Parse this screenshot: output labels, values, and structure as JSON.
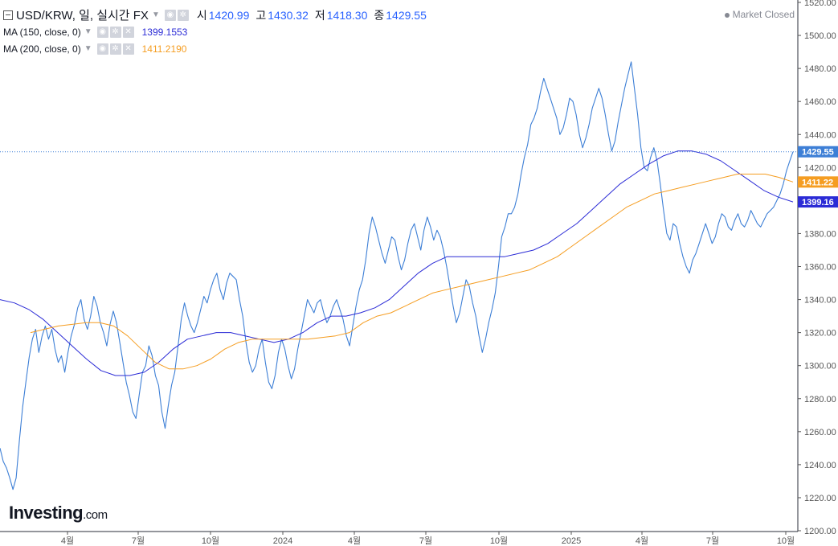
{
  "header": {
    "symbol": "USD/KRW, 일, 실시간 FX",
    "open_label": "시",
    "open": "1420.99",
    "high_label": "고",
    "high": "1430.32",
    "low_label": "저",
    "low": "1418.30",
    "close_label": "종",
    "close": "1429.55",
    "status": "Market Closed"
  },
  "indicators": [
    {
      "name": "MA (150, close, 0)",
      "value": "1399.1553",
      "color": "#2b2bd6"
    },
    {
      "name": "MA (200, close, 0)",
      "value": "1411.2190",
      "color": "#f59d21"
    }
  ],
  "logo": {
    "name": "Investing",
    "suffix": ".com"
  },
  "colors": {
    "price_line": "#3d7fd6",
    "ma150": "#2b2bd6",
    "ma200": "#f59d21",
    "last_price_tag": "#3d7fd6",
    "axis_text": "#555555"
  },
  "chart_data": {
    "type": "line",
    "y_axis": {
      "ticks": [
        1200,
        1220,
        1240,
        1260,
        1280,
        1300,
        1320,
        1340,
        1360,
        1380,
        1400,
        1420,
        1440,
        1460,
        1480,
        1500,
        1520
      ],
      "range": [
        1200,
        1520
      ]
    },
    "x_axis": {
      "ticks": [
        "4월",
        "7월",
        "10월",
        "2024",
        "4월",
        "7월",
        "10월",
        "2025",
        "4월",
        "7월",
        "10월"
      ]
    },
    "last_price": 1429.55,
    "last_price_label": "1429.55",
    "ma150_label": "1399.16",
    "ma200_label": "1411.22",
    "series": [
      {
        "name": "USD/KRW",
        "key": "price",
        "values": [
          1250,
          1242,
          1238,
          1232,
          1225,
          1232,
          1255,
          1275,
          1290,
          1305,
          1316,
          1322,
          1308,
          1318,
          1324,
          1316,
          1322,
          1310,
          1302,
          1306,
          1296,
          1308,
          1318,
          1325,
          1335,
          1340,
          1328,
          1322,
          1330,
          1342,
          1336,
          1326,
          1320,
          1312,
          1325,
          1333,
          1326,
          1314,
          1302,
          1290,
          1282,
          1272,
          1268,
          1282,
          1296,
          1300,
          1312,
          1306,
          1294,
          1288,
          1272,
          1262,
          1276,
          1288,
          1296,
          1312,
          1328,
          1338,
          1330,
          1324,
          1320,
          1326,
          1334,
          1342,
          1338,
          1346,
          1352,
          1356,
          1346,
          1340,
          1350,
          1356,
          1354,
          1352,
          1340,
          1330,
          1314,
          1302,
          1296,
          1300,
          1310,
          1316,
          1302,
          1290,
          1286,
          1294,
          1308,
          1316,
          1310,
          1300,
          1292,
          1298,
          1310,
          1320,
          1330,
          1340,
          1336,
          1332,
          1338,
          1340,
          1332,
          1326,
          1330,
          1336,
          1340,
          1334,
          1328,
          1318,
          1312,
          1324,
          1336,
          1346,
          1352,
          1364,
          1380,
          1390,
          1384,
          1376,
          1368,
          1362,
          1370,
          1378,
          1376,
          1366,
          1358,
          1364,
          1374,
          1382,
          1386,
          1378,
          1370,
          1382,
          1390,
          1384,
          1376,
          1382,
          1378,
          1370,
          1360,
          1348,
          1336,
          1326,
          1332,
          1342,
          1352,
          1348,
          1338,
          1330,
          1318,
          1308,
          1316,
          1326,
          1334,
          1344,
          1360,
          1378,
          1384,
          1392,
          1392,
          1396,
          1404,
          1416,
          1426,
          1434,
          1446,
          1450,
          1456,
          1466,
          1474,
          1468,
          1462,
          1456,
          1450,
          1440,
          1444,
          1452,
          1462,
          1460,
          1452,
          1440,
          1432,
          1438,
          1446,
          1456,
          1462,
          1468,
          1462,
          1452,
          1440,
          1430,
          1436,
          1448,
          1458,
          1468,
          1476,
          1484,
          1468,
          1452,
          1432,
          1420,
          1418,
          1426,
          1432,
          1424,
          1410,
          1394,
          1380,
          1376,
          1386,
          1384,
          1374,
          1366,
          1360,
          1356,
          1364,
          1368,
          1374,
          1380,
          1386,
          1380,
          1374,
          1378,
          1386,
          1392,
          1390,
          1384,
          1382,
          1388,
          1392,
          1386,
          1384,
          1388,
          1394,
          1390,
          1386,
          1384,
          1388,
          1392,
          1394,
          1396,
          1400,
          1404,
          1410,
          1418,
          1424,
          1429.55
        ]
      },
      {
        "name": "MA (150, close, 0)",
        "key": "ma150",
        "values": [
          1340,
          1338,
          1334,
          1328,
          1320,
          1312,
          1304,
          1297,
          1294,
          1294,
          1296,
          1302,
          1310,
          1316,
          1318,
          1320,
          1320,
          1318,
          1316,
          1314,
          1316,
          1320,
          1326,
          1330,
          1330,
          1332,
          1335,
          1340,
          1348,
          1356,
          1362,
          1366,
          1366,
          1366,
          1366,
          1366,
          1368,
          1370,
          1374,
          1380,
          1386,
          1394,
          1402,
          1410,
          1416,
          1422,
          1427,
          1430,
          1430,
          1428,
          1424,
          1418,
          1412,
          1406,
          1402,
          1399.16
        ]
      },
      {
        "name": "MA (200, close, 0)",
        "key": "ma200",
        "values": [
          1320,
          1322,
          1324,
          1325,
          1326,
          1326,
          1324,
          1318,
          1310,
          1302,
          1298,
          1298,
          1300,
          1304,
          1310,
          1314,
          1316,
          1316,
          1316,
          1316,
          1316,
          1317,
          1318,
          1320,
          1326,
          1330,
          1332,
          1336,
          1340,
          1344,
          1346,
          1348,
          1350,
          1352,
          1354,
          1356,
          1358,
          1362,
          1366,
          1372,
          1378,
          1384,
          1390,
          1396,
          1400,
          1404,
          1406,
          1408,
          1410,
          1412,
          1414,
          1416,
          1416,
          1416,
          1414,
          1411.22
        ]
      }
    ]
  }
}
